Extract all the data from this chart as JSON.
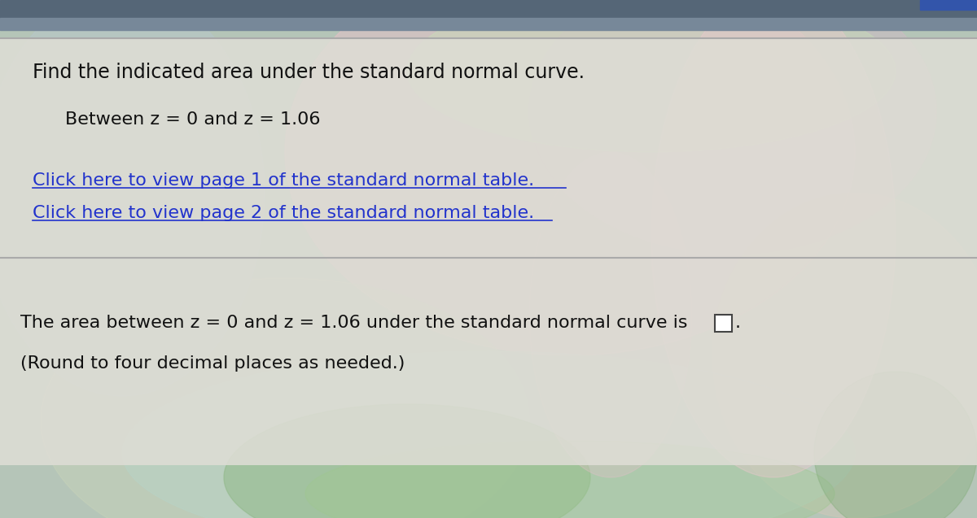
{
  "title_text": "Find the indicated area under the standard normal curve.",
  "subtitle_text": "Between z = 0 and z = 1.06",
  "link1_text": "Click here to view page 1 of the standard normal table.",
  "link2_text": "Click here to view page 2 of the standard normal table.",
  "answer_text": "The area between z = 0 and z = 1.06 under the standard normal curve is",
  "round_text": "(Round to four decimal places as needed.)",
  "title_fontsize": 17,
  "subtitle_fontsize": 16,
  "link_fontsize": 16,
  "answer_fontsize": 16,
  "link_color": "#2233cc",
  "text_color": "#111111"
}
